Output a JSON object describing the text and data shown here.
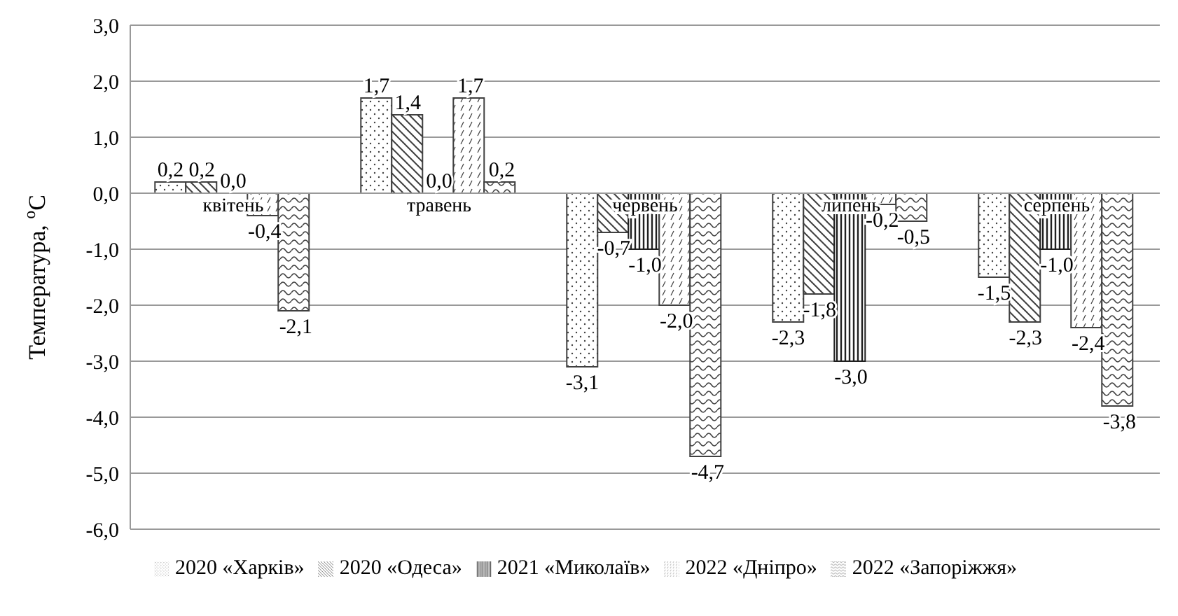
{
  "chart_data": {
    "type": "bar",
    "ylabel": "Температура, $^{o}$С",
    "categories": [
      "квітень",
      "травень",
      "червень",
      "липень",
      "серпень"
    ],
    "series": [
      {
        "name": "2020 «Харків»",
        "color": "#404040",
        "values": [
          0.2,
          1.7,
          -3.1,
          -2.3,
          -1.5
        ],
        "value_labels": [
          "0,2",
          "1,7",
          "-3,1",
          "-2,3",
          "-1,5"
        ]
      },
      {
        "name": "2020 «Одеса»",
        "color": "#404040",
        "values": [
          0.2,
          1.4,
          -0.7,
          -1.8,
          -2.3
        ],
        "value_labels": [
          "0,2",
          "1,4",
          "-0,7",
          "-1,8",
          "-2,3"
        ]
      },
      {
        "name": "2021 «Миколаїв»",
        "color": "#202020",
        "values": [
          0.0,
          0.0,
          -1.0,
          -3.0,
          -1.0
        ],
        "value_labels": [
          "0,0",
          "0,0",
          "-1,0",
          "-3,0",
          "-1,0"
        ]
      },
      {
        "name": "2022 «Дніпро»",
        "color": "#404040",
        "values": [
          -0.4,
          1.7,
          -2.0,
          -0.2,
          -2.4
        ],
        "value_labels": [
          "-0,4",
          "1,7",
          "-2,0",
          "-0,2",
          "-2,4"
        ]
      },
      {
        "name": "2022 «Запоріжжя»",
        "color": "#404040",
        "values": [
          -2.1,
          0.2,
          -4.7,
          -0.5,
          -3.8
        ],
        "value_labels": [
          "-2,1",
          "0,2",
          "-4,7",
          "-0,5",
          "-3,8"
        ]
      }
    ],
    "ylim": [
      -6,
      3
    ],
    "yticks": [
      {
        "value": -6,
        "label": "-6,0"
      },
      {
        "value": -5,
        "label": "-5,0"
      },
      {
        "value": -4,
        "label": "-4,0"
      },
      {
        "value": -3,
        "label": "-3,0"
      },
      {
        "value": -2,
        "label": "-2,0"
      },
      {
        "value": -1,
        "label": "-1,0"
      },
      {
        "value": 0,
        "label": "0,0"
      },
      {
        "value": 1,
        "label": "1,0"
      },
      {
        "value": 2,
        "label": "2,0"
      },
      {
        "value": 3,
        "label": "3,0"
      }
    ],
    "grid": "y",
    "legend": "bottom"
  }
}
